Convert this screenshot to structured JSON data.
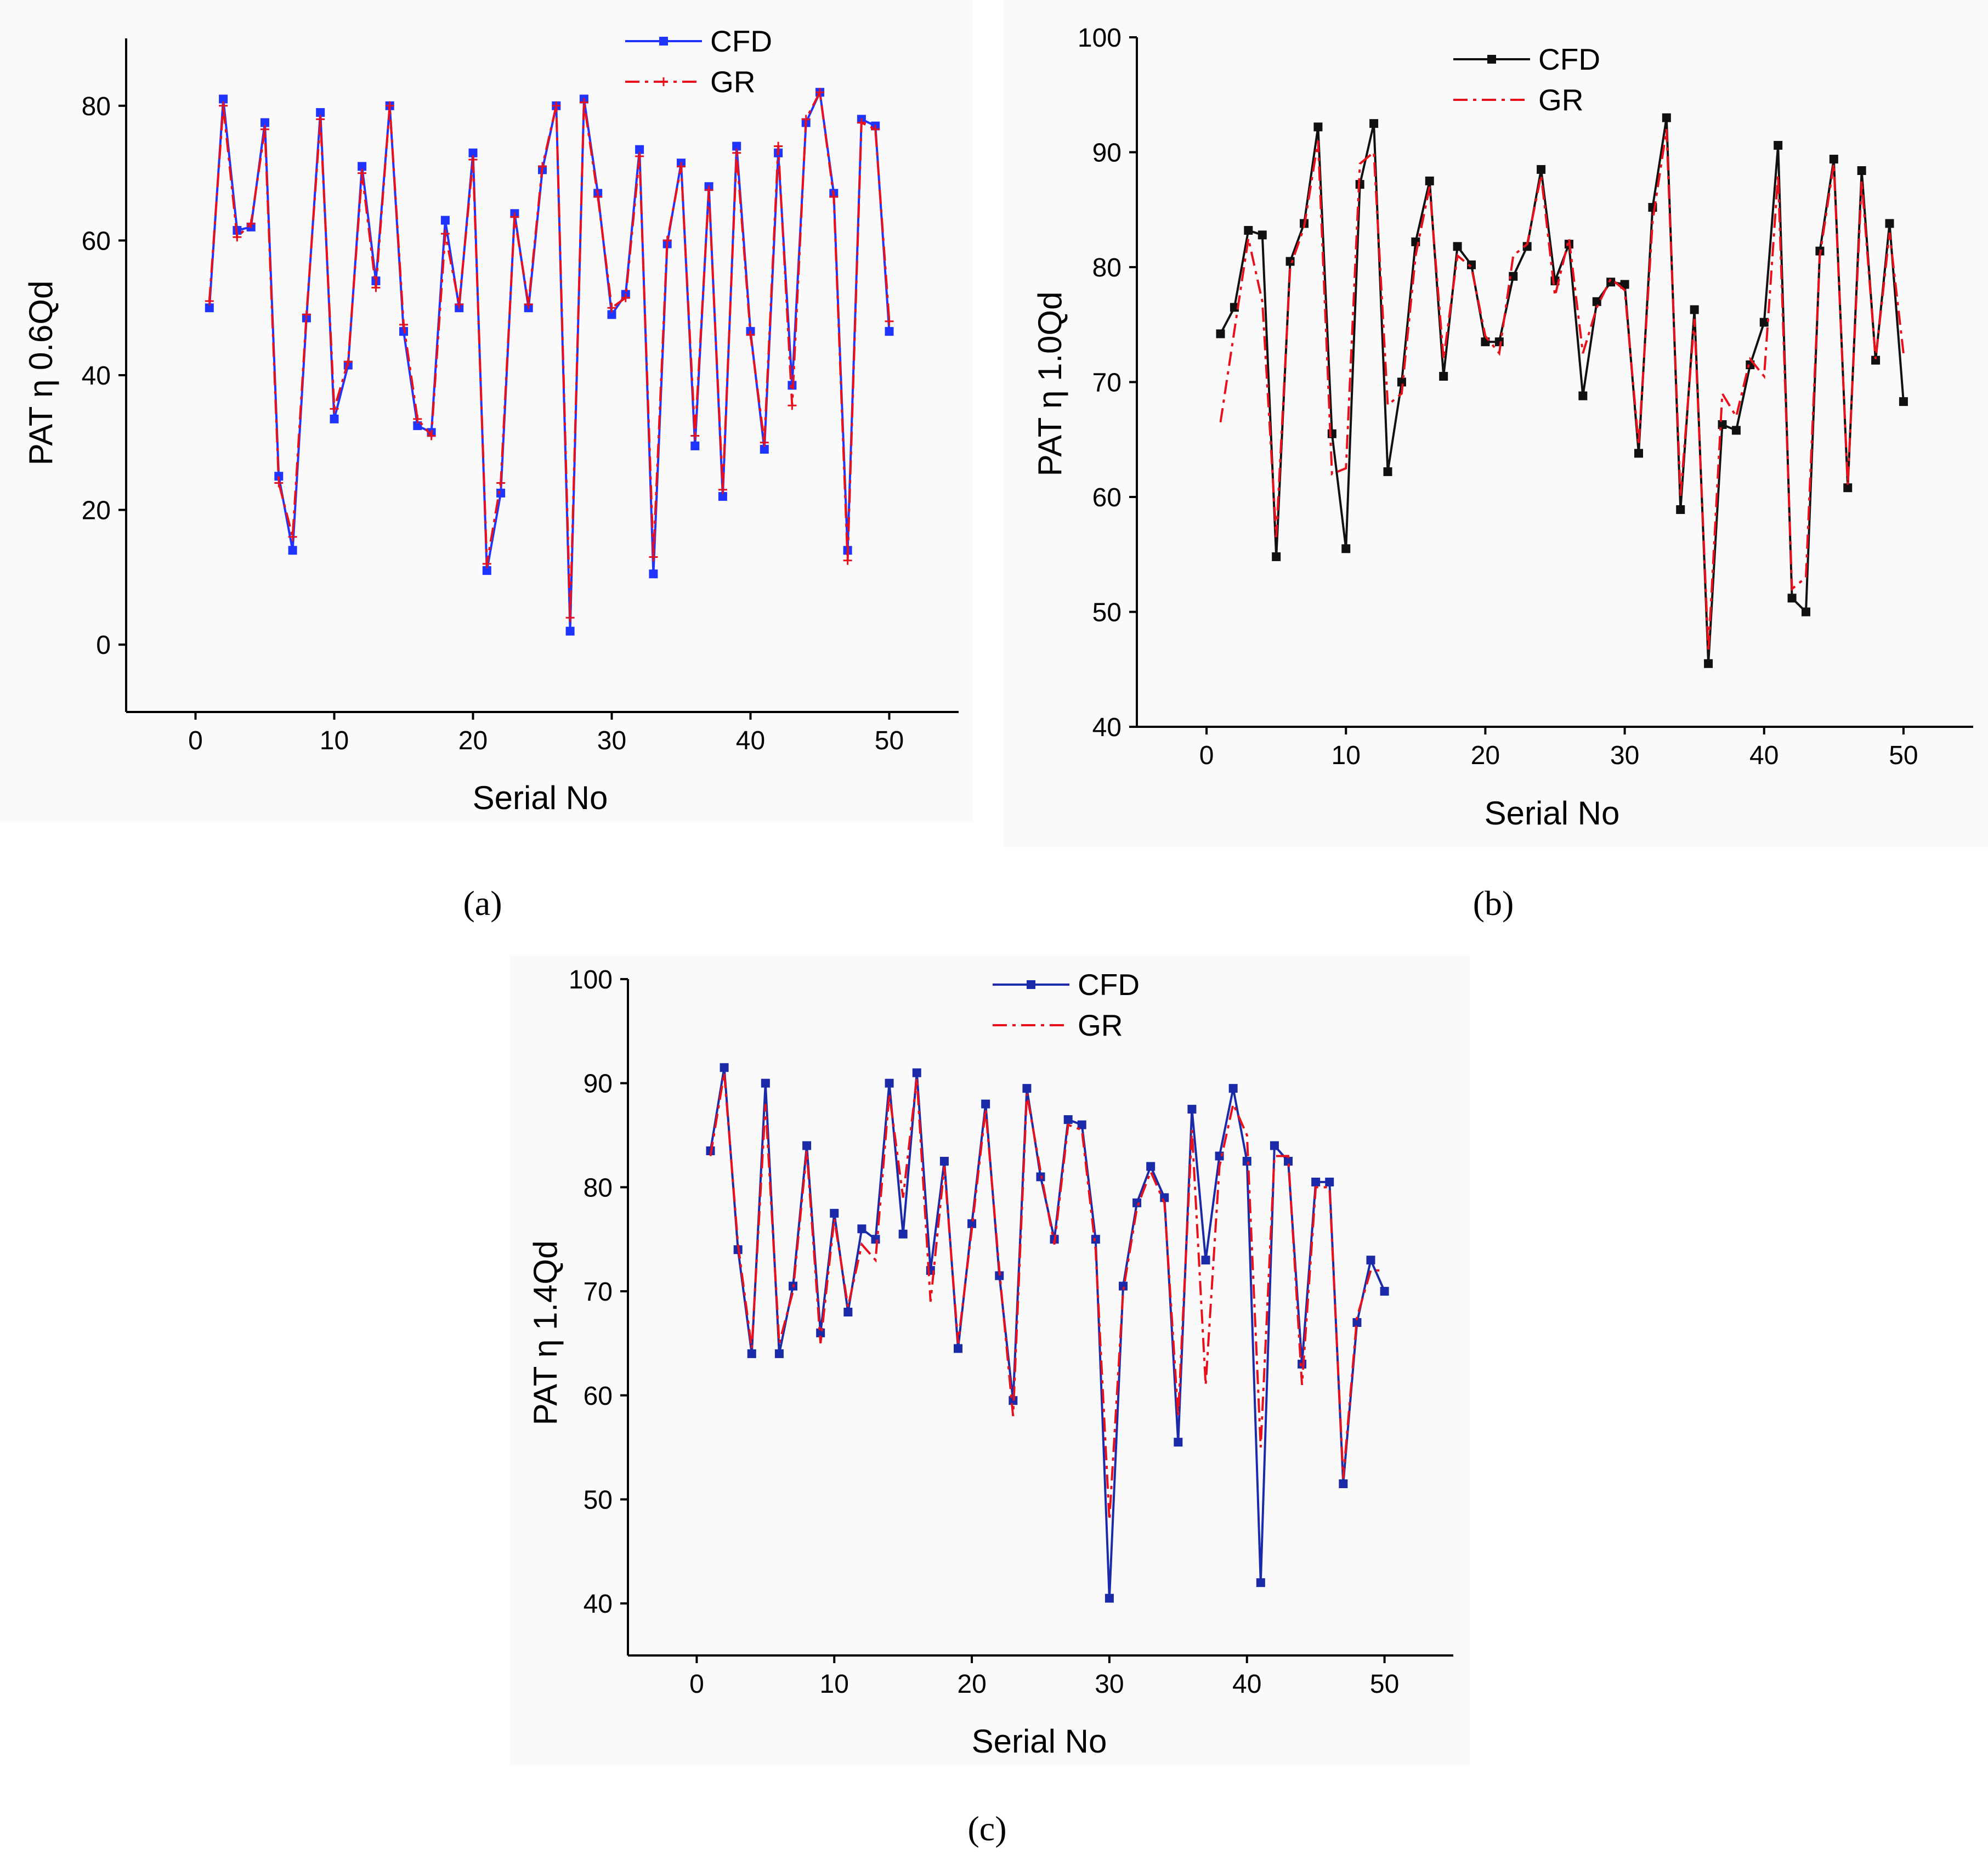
{
  "figure": {
    "captions": [
      "(a)",
      "(b)",
      "(c)"
    ]
  },
  "chart_data": [
    {
      "type": "line",
      "panel": "a",
      "xlabel": "Serial No",
      "ylabel": "PAT η 0.6Qd",
      "xlim": [
        -5,
        55
      ],
      "ylim": [
        -10,
        90
      ],
      "xticks": [
        0,
        10,
        20,
        30,
        40,
        50
      ],
      "yticks": [
        0,
        20,
        40,
        60,
        80
      ],
      "legend_position": "top-center",
      "x": [
        1,
        2,
        3,
        4,
        5,
        6,
        7,
        8,
        9,
        10,
        11,
        12,
        13,
        14,
        15,
        16,
        17,
        18,
        19,
        20,
        21,
        22,
        23,
        24,
        25,
        26,
        27,
        28,
        29,
        30,
        31,
        32,
        33,
        34,
        35,
        36,
        37,
        38,
        39,
        40,
        41,
        42,
        43,
        44,
        45,
        46,
        47,
        48,
        49,
        50
      ],
      "series": [
        {
          "name": "CFD",
          "color": "#1f35ff",
          "style": "solid",
          "marker": "square",
          "values": [
            50,
            81,
            61.5,
            62,
            77.5,
            25,
            14,
            48.5,
            79,
            33.5,
            41.5,
            71,
            54,
            80,
            46.5,
            32.5,
            31.5,
            63,
            50,
            73,
            11,
            22.5,
            64,
            50,
            70.5,
            80,
            2,
            81,
            67,
            49,
            52,
            73.5,
            10.5,
            59.5,
            71.5,
            29.5,
            68,
            22,
            74,
            46.5,
            29,
            73,
            38.5,
            77.5,
            82,
            67,
            14,
            78,
            77,
            46.5
          ]
        },
        {
          "name": "GR",
          "color": "#e8111b",
          "style": "dashdot",
          "marker": "plus",
          "values": [
            51,
            80,
            60.5,
            62.5,
            76.5,
            24,
            16,
            49,
            78,
            35,
            42,
            70,
            53,
            80,
            47.5,
            33.5,
            31,
            61,
            50.5,
            72,
            12,
            24,
            63.5,
            50.5,
            71,
            80,
            4,
            80.5,
            66.5,
            50,
            51.5,
            72.5,
            13,
            60,
            71,
            31,
            67.5,
            23,
            73,
            46,
            30,
            74,
            35.5,
            78,
            82,
            66.5,
            12.5,
            77.5,
            76.5,
            48
          ]
        }
      ]
    },
    {
      "type": "line",
      "panel": "b",
      "xlabel": "Serial No",
      "ylabel": "PAT η 1.0Qd",
      "xlim": [
        -5,
        55
      ],
      "ylim": [
        40,
        100
      ],
      "xticks": [
        0,
        10,
        20,
        30,
        40,
        50
      ],
      "yticks": [
        40,
        50,
        60,
        70,
        80,
        90,
        100
      ],
      "legend_position": "top-left",
      "x": [
        1,
        2,
        3,
        4,
        5,
        6,
        7,
        8,
        9,
        10,
        11,
        12,
        13,
        14,
        15,
        16,
        17,
        18,
        19,
        20,
        21,
        22,
        23,
        24,
        25,
        26,
        27,
        28,
        29,
        30,
        31,
        32,
        33,
        34,
        35,
        36,
        37,
        38,
        39,
        40,
        41,
        42,
        43,
        44,
        45,
        46,
        47,
        48,
        49,
        50
      ],
      "series": [
        {
          "name": "CFD",
          "color": "#111111",
          "style": "solid",
          "marker": "square",
          "values": [
            74.2,
            76.5,
            83.2,
            82.8,
            54.8,
            80.5,
            83.8,
            92.2,
            65.5,
            55.5,
            87.2,
            92.5,
            62.2,
            70,
            82.2,
            87.5,
            70.5,
            81.8,
            80.2,
            73.5,
            73.5,
            79.2,
            81.8,
            88.5,
            78.8,
            82,
            68.8,
            77,
            78.7,
            78.5,
            63.8,
            85.2,
            93,
            58.9,
            76.3,
            45.5,
            66.3,
            65.8,
            71.5,
            75.2,
            90.6,
            51.2,
            50,
            81.4,
            89.4,
            60.8,
            88.4,
            71.9,
            83.8,
            68.3
          ]
        },
        {
          "name": "GR",
          "color": "#e8111b",
          "style": "dashdot",
          "marker": "none",
          "values": [
            66.5,
            74.5,
            82.5,
            77,
            56.5,
            80,
            83.5,
            91,
            62,
            62.5,
            89,
            90,
            68,
            69,
            81,
            87,
            72,
            81,
            80,
            74,
            72.5,
            81,
            82,
            88,
            77.5,
            82.5,
            72.5,
            76.5,
            79,
            78,
            64.5,
            84,
            92,
            60,
            75.5,
            46.5,
            69,
            67,
            72,
            70.5,
            88,
            52,
            53,
            81,
            89,
            61,
            87.5,
            72,
            83,
            72.5
          ]
        }
      ]
    },
    {
      "type": "line",
      "panel": "c",
      "xlabel": "Serial No",
      "ylabel": "PAT η 1.4Qd",
      "xlim": [
        -5,
        55
      ],
      "ylim": [
        35,
        100
      ],
      "xticks": [
        0,
        10,
        20,
        30,
        40,
        50
      ],
      "yticks": [
        40,
        50,
        60,
        70,
        80,
        90,
        100
      ],
      "legend_position": "top-center",
      "x": [
        1,
        2,
        3,
        4,
        5,
        6,
        7,
        8,
        9,
        10,
        11,
        12,
        13,
        14,
        15,
        16,
        17,
        18,
        19,
        20,
        21,
        22,
        23,
        24,
        25,
        26,
        27,
        28,
        29,
        30,
        31,
        32,
        33,
        34,
        35,
        36,
        37,
        38,
        39,
        40,
        41,
        42,
        43,
        44,
        45,
        46,
        47,
        48,
        49,
        50
      ],
      "series": [
        {
          "name": "CFD",
          "color": "#1a2aa8",
          "style": "solid",
          "marker": "square",
          "values": [
            83.5,
            91.5,
            74,
            64,
            90,
            64,
            70.5,
            84,
            66,
            77.5,
            68,
            76,
            75,
            90,
            75.5,
            91,
            72,
            82.5,
            64.5,
            76.5,
            88,
            71.5,
            59.5,
            89.5,
            81,
            75,
            86.5,
            86,
            75,
            40.5,
            70.5,
            78.5,
            82,
            79,
            55.5,
            87.5,
            73,
            83,
            89.5,
            82.5,
            42,
            84,
            82.5,
            63,
            80.5,
            80.5,
            51.5,
            67,
            73,
            70
          ]
        },
        {
          "name": "GR",
          "color": "#e8111b",
          "style": "dashdot",
          "marker": "none",
          "values": [
            83,
            91,
            74.5,
            64.5,
            88,
            65,
            70,
            83.5,
            65,
            77,
            68.5,
            74.5,
            73,
            89,
            79,
            90.5,
            69,
            82,
            65,
            76,
            87.5,
            72,
            58,
            89,
            81.5,
            74.5,
            86,
            85.5,
            74,
            48,
            70,
            78,
            81.5,
            78.5,
            58,
            85.5,
            61,
            82,
            88,
            85,
            55,
            83,
            83,
            61,
            80,
            80,
            52,
            67.5,
            72,
            72
          ]
        }
      ]
    }
  ]
}
